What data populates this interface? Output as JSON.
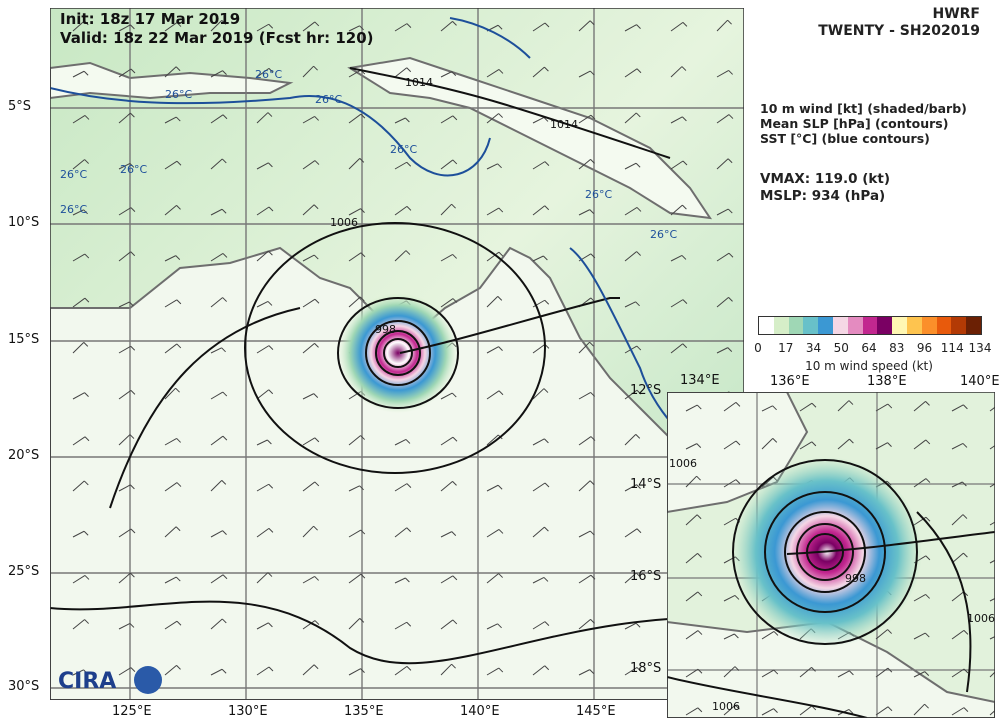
{
  "header": {
    "model": "HWRF",
    "storm": "TWENTY - SH202019",
    "init": "Init:   18z 17 Mar 2019",
    "valid": "Valid: 18z 22 Mar 2019 (Fcst hr: 120)"
  },
  "legend": {
    "line1": "10 m wind [kt] (shaded/barb)",
    "line2": "Mean SLP [hPa] (contours)",
    "line3": "SST [°C] (blue contours)"
  },
  "stats": {
    "vmax": "VMAX: 119.0 (kt)",
    "mslp": "MSLP:  934 (hPa)"
  },
  "colorbar": {
    "ticks": [
      "0",
      "17",
      "34",
      "50",
      "64",
      "83",
      "96",
      "114",
      "134"
    ],
    "label": "10 m wind speed (kt)",
    "colors": [
      "#ffffff",
      "#d6eec8",
      "#9fd7b5",
      "#68c1c9",
      "#3b98d3",
      "#f5d7e5",
      "#e48bc0",
      "#c2278f",
      "#7a0063",
      "#fff7b3",
      "#fec44f",
      "#fb8f2a",
      "#e85a0c",
      "#b33a05",
      "#6b2004"
    ]
  },
  "main_map": {
    "lon_labels": [
      "125°E",
      "130°E",
      "135°E",
      "140°E",
      "145°E"
    ],
    "lat_labels": [
      "5°S",
      "10°S",
      "15°S",
      "20°S",
      "25°S",
      "30°S"
    ],
    "contour_labels": [
      "1014",
      "1014",
      "1006",
      "998"
    ],
    "sst_labels": [
      "26°C",
      "26°C",
      "26°C",
      "26°C",
      "26°C",
      "26°C",
      "26°C",
      "26°C",
      "26°C"
    ],
    "logo_text": "CIRA"
  },
  "inset_map": {
    "lon_labels": [
      "134°E",
      "136°E",
      "138°E",
      "140°E"
    ],
    "lat_labels": [
      "12°S",
      "14°S",
      "16°S",
      "18°S"
    ],
    "contour_labels": [
      "1006",
      "1006",
      "998",
      "1006"
    ]
  }
}
